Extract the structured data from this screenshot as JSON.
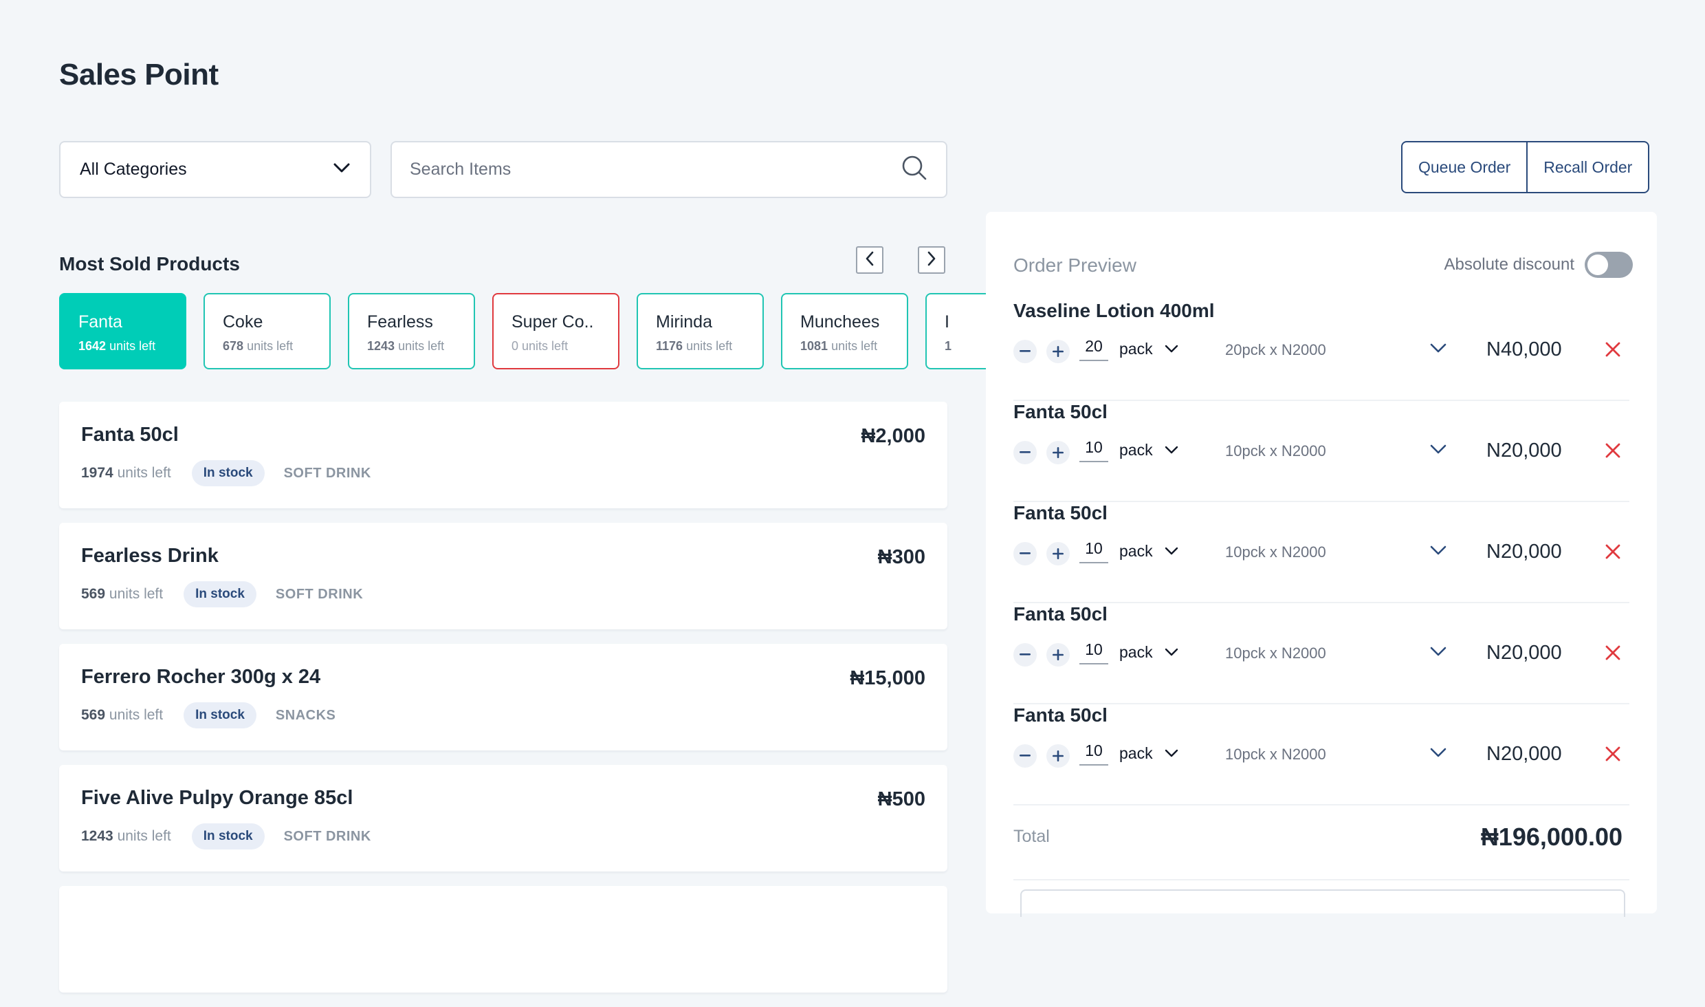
{
  "page": {
    "title": "Sales Point"
  },
  "filters": {
    "category_value": "All Categories",
    "search_placeholder": "Search Items"
  },
  "order_actions": {
    "queue_label": "Queue Order",
    "recall_label": "Recall Order"
  },
  "most_sold": {
    "title": "Most Sold Products",
    "chips": [
      {
        "name": "Fanta",
        "units": "1642",
        "units_suffix": "units left",
        "state": "active"
      },
      {
        "name": "Coke",
        "units": "678",
        "units_suffix": "units left",
        "state": "normal"
      },
      {
        "name": "Fearless",
        "units": "1243",
        "units_suffix": "units left",
        "state": "normal"
      },
      {
        "name": "Super Co..",
        "units": "0",
        "units_suffix": "units left",
        "state": "out"
      },
      {
        "name": "Mirinda",
        "units": "1176",
        "units_suffix": "units left",
        "state": "normal"
      },
      {
        "name": "Munchees",
        "units": "1081",
        "units_suffix": "units left",
        "state": "normal"
      },
      {
        "name": "I",
        "units": "1",
        "units_suffix": "",
        "state": "normal"
      }
    ]
  },
  "products": [
    {
      "name": "Fanta 50cl",
      "price": "₦2,000",
      "units": "1974",
      "units_suffix": "units left",
      "badge": "In stock",
      "category": "SOFT DRINK"
    },
    {
      "name": "Fearless Drink",
      "price": "₦300",
      "units": "569",
      "units_suffix": "units left",
      "badge": "In stock",
      "category": "SOFT DRINK"
    },
    {
      "name": "Ferrero Rocher 300g x 24",
      "price": "₦15,000",
      "units": "569",
      "units_suffix": "units left",
      "badge": "In stock",
      "category": "SNACKS"
    },
    {
      "name": "Five Alive Pulpy Orange 85cl",
      "price": "₦500",
      "units": "1243",
      "units_suffix": "units left",
      "badge": "In stock",
      "category": "SOFT DRINK"
    },
    {
      "name": "",
      "price": "",
      "units": "",
      "units_suffix": "",
      "badge": "",
      "category": ""
    }
  ],
  "order": {
    "title": "Order Preview",
    "discount_label": "Absolute discount",
    "discount_enabled": false,
    "items": [
      {
        "name": "Vaseline Lotion 400ml",
        "qty": "20",
        "unit": "pack",
        "calc": "20pck x N2000",
        "amount": "N40,000"
      },
      {
        "name": "Fanta 50cl",
        "qty": "10",
        "unit": "pack",
        "calc": "10pck x N2000",
        "amount": "N20,000"
      },
      {
        "name": "Fanta 50cl",
        "qty": "10",
        "unit": "pack",
        "calc": "10pck x N2000",
        "amount": "N20,000"
      },
      {
        "name": "Fanta 50cl",
        "qty": "10",
        "unit": "pack",
        "calc": "10pck x N2000",
        "amount": "N20,000"
      },
      {
        "name": "Fanta 50cl",
        "qty": "10",
        "unit": "pack",
        "calc": "10pck x N2000",
        "amount": "N20,000"
      }
    ],
    "total_label": "Total",
    "total_value": "₦196,000.00"
  },
  "colors": {
    "accent_teal": "#00cdb7",
    "brand_navy": "#2a4a7b",
    "danger_red": "#e0393e",
    "background": "#f3f6f9"
  }
}
